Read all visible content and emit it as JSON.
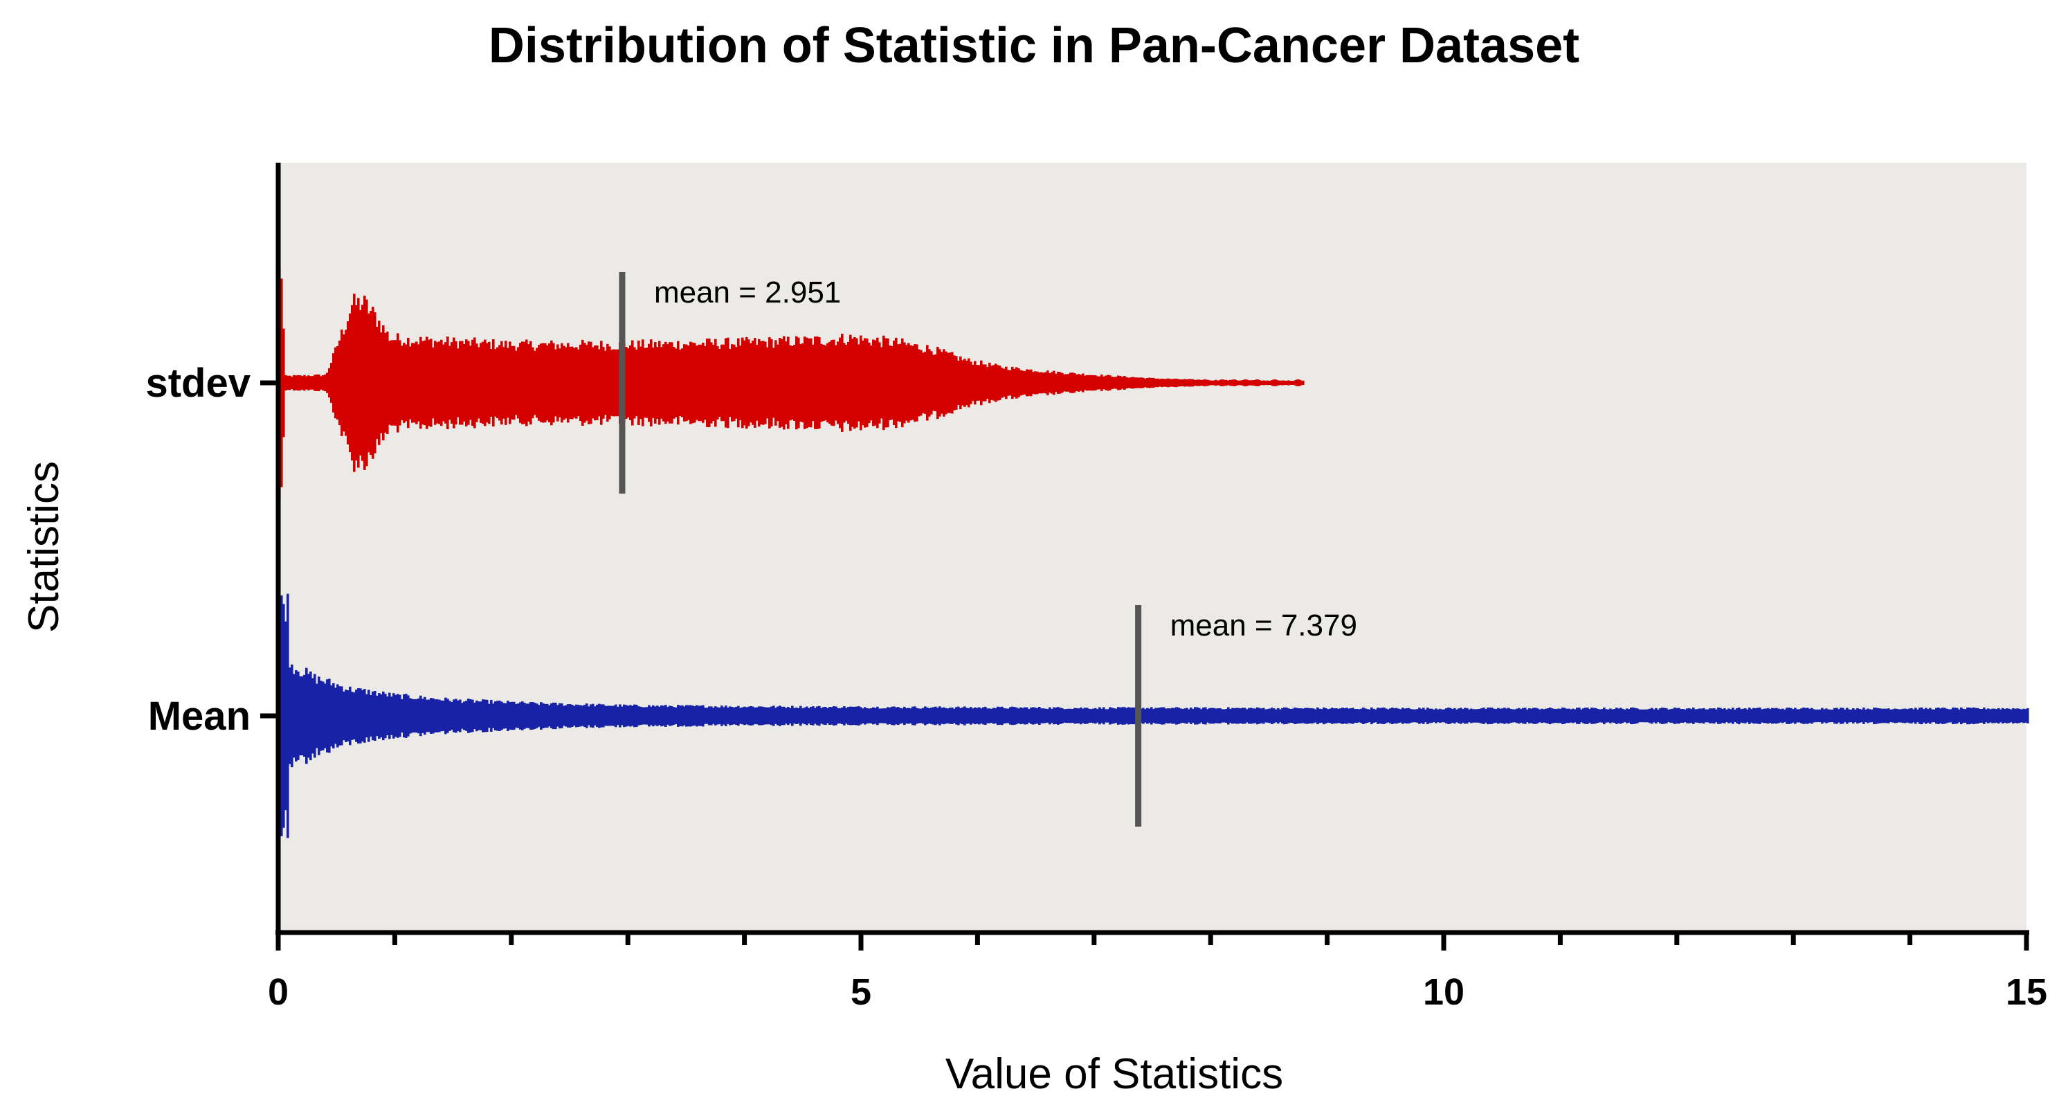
{
  "chart_data": {
    "type": "scatter",
    "subtype": "beeswarm",
    "title": "Distribution of Statistic in Pan-Cancer Dataset",
    "xlabel": "Value of Statistics",
    "ylabel": "Statistics",
    "xlim": [
      0,
      15
    ],
    "x_ticks": [
      0,
      5,
      10,
      15
    ],
    "x_minor_step": 1,
    "grid": false,
    "background_color": "#EBEAE6",
    "series": [
      {
        "name": "stdev",
        "color": "#D40000",
        "mean": 2.951,
        "mean_label": "mean = 2.951",
        "range": [
          0,
          8.8
        ],
        "profile": [
          [
            0.0,
            0.5
          ],
          [
            0.03,
            0.5
          ],
          [
            0.04,
            0.03
          ],
          [
            0.4,
            0.035
          ],
          [
            0.45,
            0.1
          ],
          [
            0.52,
            0.2
          ],
          [
            0.58,
            0.28
          ],
          [
            0.62,
            0.35
          ],
          [
            0.72,
            0.36
          ],
          [
            0.82,
            0.3
          ],
          [
            0.95,
            0.2
          ],
          [
            1.2,
            0.19
          ],
          [
            2.0,
            0.17
          ],
          [
            3.0,
            0.17
          ],
          [
            4.0,
            0.18
          ],
          [
            4.6,
            0.19
          ],
          [
            4.9,
            0.2
          ],
          [
            5.3,
            0.18
          ],
          [
            5.6,
            0.15
          ],
          [
            5.9,
            0.1
          ],
          [
            6.2,
            0.07
          ],
          [
            6.6,
            0.05
          ],
          [
            7.0,
            0.035
          ],
          [
            7.5,
            0.02
          ],
          [
            8.0,
            0.012
          ],
          [
            8.6,
            0.01
          ]
        ],
        "outliers": [
          7.95,
          8.1,
          8.2,
          8.3,
          8.4,
          8.55,
          8.75
        ]
      },
      {
        "name": "Mean",
        "color": "#1722A6",
        "mean": 7.379,
        "mean_label": "mean = 7.379",
        "range": [
          0,
          15
        ],
        "profile": [
          [
            0.0,
            0.5
          ],
          [
            0.08,
            0.5
          ],
          [
            0.09,
            0.23
          ],
          [
            0.3,
            0.17
          ],
          [
            0.6,
            0.12
          ],
          [
            1.0,
            0.09
          ],
          [
            1.5,
            0.07
          ],
          [
            2.2,
            0.055
          ],
          [
            3.0,
            0.045
          ],
          [
            4.5,
            0.04
          ],
          [
            7.0,
            0.035
          ],
          [
            10.0,
            0.033
          ],
          [
            15.0,
            0.033
          ]
        ],
        "outliers": []
      }
    ]
  }
}
